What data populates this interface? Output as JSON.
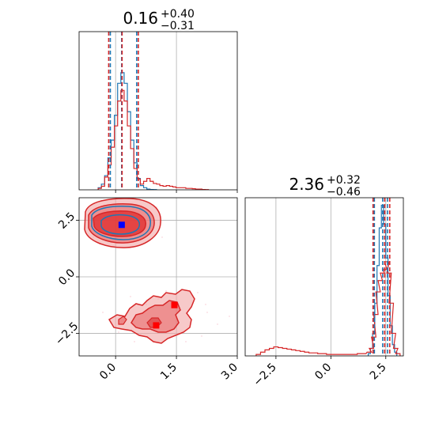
{
  "chart_data": [
    {
      "type": "histogram",
      "panel": "top-left",
      "title": {
        "base": "0.16",
        "sup": "+0.40",
        "sub": "−0.31"
      },
      "xlim": [
        -0.9,
        3.0
      ],
      "grid": true,
      "series": [
        {
          "name": "",
          "color": "#1f77b4",
          "x": [
            -0.39,
            -0.31,
            -0.23,
            -0.15,
            -0.07,
            0.01,
            0.09,
            0.17,
            0.25,
            0.33,
            0.41,
            0.49,
            0.57,
            0.65,
            0.73,
            0.81,
            0.89,
            0.97
          ],
          "values": [
            3,
            8,
            20,
            45,
            70,
            105,
            150,
            165,
            150,
            110,
            70,
            38,
            16,
            6,
            3,
            1,
            0.5,
            0.3
          ]
        },
        {
          "name": "",
          "color": "#d62728",
          "x": [
            -0.39,
            -0.31,
            -0.23,
            -0.15,
            -0.07,
            0.01,
            0.09,
            0.17,
            0.25,
            0.33,
            0.41,
            0.49,
            0.57,
            0.65,
            0.73,
            0.81,
            0.89,
            0.97,
            1.05,
            1.13,
            1.21,
            1.29,
            1.37,
            1.45,
            1.53,
            1.61,
            1.69,
            1.77,
            1.85,
            1.93,
            2.01,
            2.09,
            2.17,
            2.25
          ],
          "values": [
            2,
            5,
            18,
            35,
            60,
            90,
            125,
            140,
            125,
            90,
            58,
            30,
            15,
            8,
            12,
            16,
            12,
            9,
            8,
            6,
            5,
            6,
            5,
            4,
            3,
            3,
            3,
            2,
            2,
            1.5,
            1,
            1,
            0.5,
            0.3
          ]
        }
      ],
      "quantiles": [
        {
          "color": "#1f77b4",
          "values": [
            -0.13,
            0.15,
            0.52
          ]
        },
        {
          "color": "#d62728",
          "values": [
            -0.17,
            0.16,
            0.56
          ]
        }
      ]
    },
    {
      "type": "contour",
      "panel": "bottom-left",
      "xlim": [
        -0.9,
        3.0
      ],
      "ylim": [
        -3.5,
        3.5
      ],
      "grid": true,
      "xticks": [
        "0.0",
        "1.5",
        "3.0"
      ],
      "yticks": [
        "2.5",
        "0.0",
        "−2.5"
      ],
      "markers": [
        {
          "color": "#0000ff",
          "x": 0.15,
          "y": 2.3
        },
        {
          "color": "#ff0000",
          "x": 1.45,
          "y": -1.25
        },
        {
          "color": "#ff0000",
          "x": 1.0,
          "y": -2.15
        }
      ]
    },
    {
      "type": "histogram",
      "panel": "bottom-right",
      "title": {
        "base": "2.36",
        "sup": "+0.32",
        "sub": "−0.46"
      },
      "xlim": [
        -3.9,
        3.3
      ],
      "grid": true,
      "xticks": [
        "−2.5",
        "0.0",
        "2.5"
      ],
      "series": [
        {
          "name": "",
          "color": "#1f77b4",
          "x": [
            1.75,
            1.85,
            1.95,
            2.05,
            2.15,
            2.25,
            2.35,
            2.45,
            2.55,
            2.65,
            2.75,
            2.85,
            2.95
          ],
          "values": [
            3,
            10,
            30,
            70,
            120,
            170,
            200,
            175,
            130,
            80,
            40,
            15,
            5
          ]
        },
        {
          "name": "",
          "color": "#d62728",
          "x": [
            -3.3,
            -3.1,
            -2.9,
            -2.7,
            -2.5,
            -2.3,
            -2.1,
            -1.9,
            -1.7,
            -1.5,
            -1.3,
            -1.1,
            -0.9,
            -0.7,
            -0.5,
            -0.3,
            -0.1,
            0.1,
            0.3,
            0.5,
            0.7,
            0.9,
            1.1,
            1.3,
            1.5,
            1.75,
            1.85,
            1.95,
            2.05,
            2.15,
            2.25,
            2.35,
            2.45,
            2.55,
            2.65,
            2.75,
            2.85,
            2.95,
            3.05
          ],
          "values": [
            2,
            5,
            8,
            10,
            12,
            11,
            10,
            9,
            8,
            7,
            6,
            5,
            4,
            4,
            3,
            3,
            2,
            2,
            2,
            2,
            2,
            2,
            2,
            3,
            3,
            5,
            10,
            25,
            55,
            85,
            100,
            110,
            115,
            125,
            110,
            70,
            30,
            10,
            3
          ]
        }
      ],
      "quantiles": [
        {
          "color": "#1f77b4",
          "values": [
            1.98,
            2.36,
            2.58
          ]
        },
        {
          "color": "#d62728",
          "values": [
            1.92,
            2.45,
            2.68
          ]
        }
      ]
    }
  ]
}
